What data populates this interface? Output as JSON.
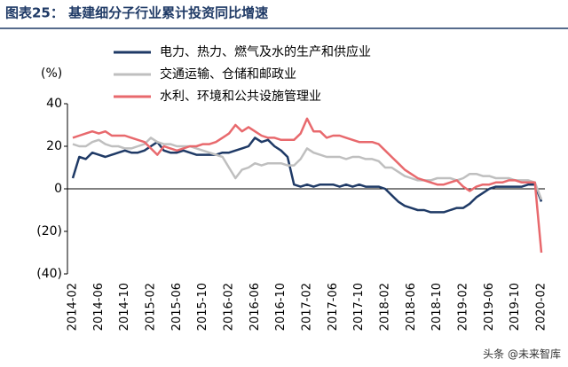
{
  "header": "图表25：  基建细分子行业累计投资同比增速",
  "watermark": "头条 @未来智库",
  "chart_data": {
    "type": "line",
    "y_unit": "(%)",
    "categories": [
      "2014-02",
      null,
      null,
      null,
      "2014-06",
      null,
      null,
      null,
      "2014-10",
      null,
      null,
      null,
      "2015-02",
      null,
      null,
      null,
      "2015-06",
      null,
      null,
      null,
      "2015-10",
      null,
      null,
      null,
      "2016-02",
      null,
      null,
      null,
      "2016-06",
      null,
      null,
      null,
      "2016-10",
      null,
      null,
      null,
      "2017-02",
      null,
      null,
      null,
      "2017-06",
      null,
      null,
      null,
      "2017-10",
      null,
      null,
      null,
      "2018-02",
      null,
      null,
      null,
      "2018-06",
      null,
      null,
      null,
      "2018-10",
      null,
      null,
      null,
      "2019-02",
      null,
      null,
      null,
      "2019-06",
      null,
      null,
      null,
      "2019-10",
      null,
      null,
      null,
      "2020-02"
    ],
    "series": [
      {
        "name": "电力、热力、燃气及水的生产和供应业",
        "color": "#1f3a66",
        "values": [
          5,
          15,
          14,
          17,
          16,
          15,
          16,
          17,
          18,
          17,
          17,
          18,
          20,
          22,
          18,
          17,
          17,
          18,
          17,
          16,
          16,
          16,
          16,
          17,
          17,
          18,
          19,
          20,
          24,
          22,
          23,
          20,
          18,
          15,
          2,
          1,
          2,
          1,
          2,
          2,
          2,
          1,
          2,
          1,
          2,
          1,
          1,
          1,
          0,
          -3,
          -6,
          -8,
          -9,
          -10,
          -10,
          -11,
          -11,
          -11,
          -10,
          -9,
          -9,
          -7,
          -4,
          -2,
          0,
          1,
          1,
          1,
          1,
          1,
          2,
          2,
          -6
        ]
      },
      {
        "name": "交通运输、仓储和邮政业",
        "color": "#bfbfbf",
        "values": [
          21,
          20,
          20,
          22,
          23,
          21,
          20,
          20,
          19,
          19,
          20,
          21,
          24,
          22,
          21,
          21,
          20,
          20,
          20,
          19,
          18,
          17,
          16,
          15,
          10,
          5,
          9,
          10,
          12,
          11,
          12,
          12,
          12,
          11,
          11,
          14,
          19,
          17,
          16,
          15,
          15,
          15,
          14,
          15,
          15,
          14,
          14,
          13,
          10,
          10,
          8,
          6,
          5,
          4,
          4,
          4,
          5,
          5,
          5,
          4,
          5,
          7,
          7,
          6,
          6,
          5,
          5,
          5,
          4,
          4,
          4,
          3,
          -5
        ]
      },
      {
        "name": "水利、环境和公共设施管理业",
        "color": "#e8696d",
        "values": [
          24,
          25,
          26,
          27,
          26,
          27,
          25,
          25,
          25,
          24,
          23,
          22,
          19,
          16,
          20,
          19,
          18,
          19,
          20,
          20,
          21,
          21,
          22,
          24,
          26,
          30,
          27,
          29,
          27,
          25,
          24,
          24,
          23,
          23,
          23,
          26,
          33,
          27,
          27,
          24,
          25,
          25,
          24,
          23,
          22,
          22,
          22,
          21,
          18,
          15,
          12,
          9,
          7,
          5,
          4,
          3,
          2,
          2,
          3,
          4,
          1,
          -1,
          1,
          2,
          2,
          3,
          3,
          4,
          4,
          3,
          3,
          3,
          -30
        ]
      }
    ],
    "ylim": [
      -40,
      40
    ],
    "yticks": [
      40,
      20,
      0,
      {
        "value": -20,
        "label": "(20)"
      },
      {
        "value": -40,
        "label": "(40)"
      }
    ],
    "legend": "top-left"
  }
}
